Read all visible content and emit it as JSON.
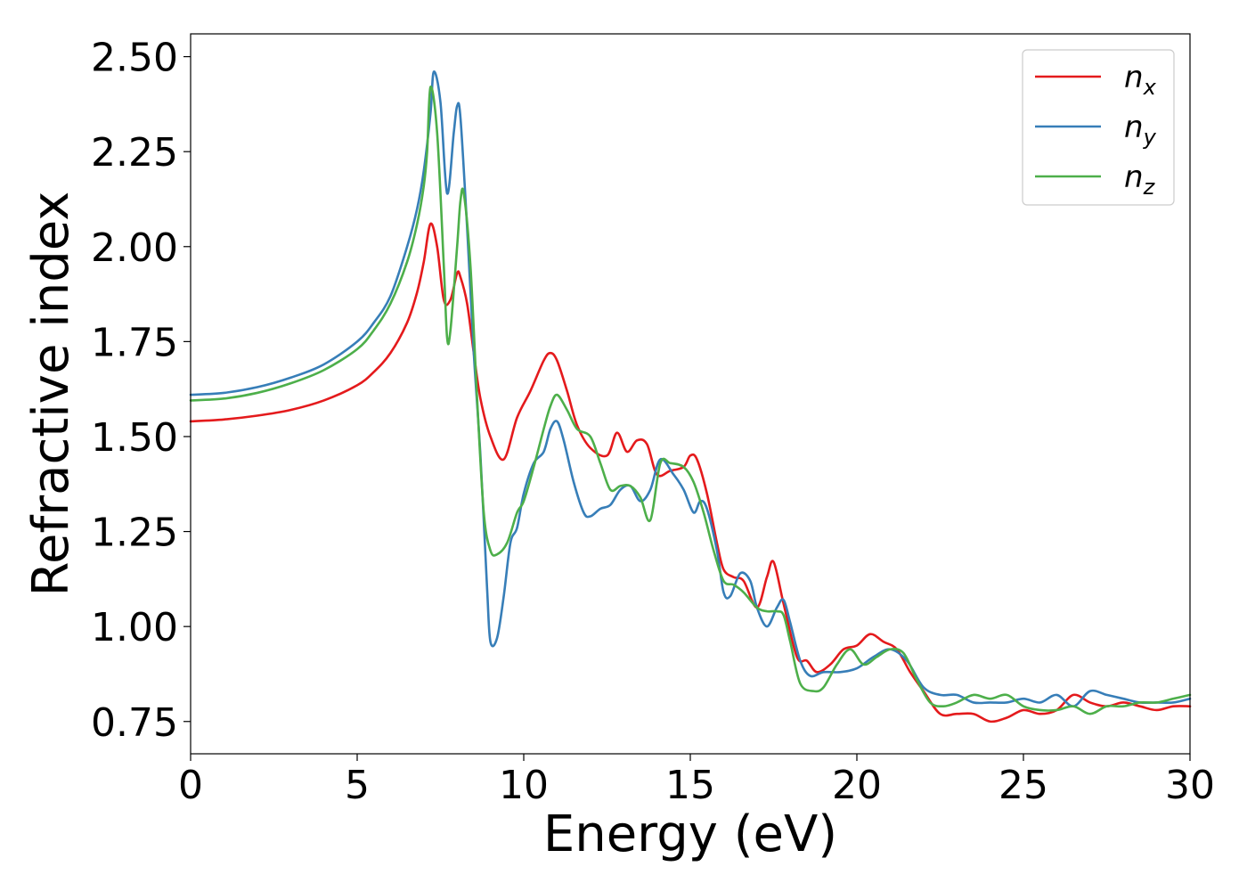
{
  "chart_data": {
    "type": "line",
    "title": "",
    "xlabel": "Energy (eV)",
    "ylabel": "Refractive index",
    "xlim": [
      0,
      30
    ],
    "ylim": [
      0.665,
      2.56
    ],
    "xticks": [
      0,
      5,
      10,
      15,
      20,
      25,
      30
    ],
    "xtick_labels": [
      "0",
      "5",
      "10",
      "15",
      "20",
      "25",
      "30"
    ],
    "yticks": [
      0.75,
      1.0,
      1.25,
      1.5,
      1.75,
      2.0,
      2.25,
      2.5
    ],
    "ytick_labels": [
      "0.75",
      "1.00",
      "1.25",
      "1.50",
      "1.75",
      "2.00",
      "2.25",
      "2.50"
    ],
    "grid": false,
    "legend_position": "top-right",
    "series": [
      {
        "name": "n_x",
        "label_base": "n",
        "label_sub": "x",
        "color": "#e41a1c",
        "x": [
          0,
          1,
          2,
          3,
          4,
          5,
          5.5,
          6,
          6.5,
          6.8,
          7.0,
          7.2,
          7.4,
          7.6,
          7.8,
          8.0,
          8.1,
          8.3,
          8.5,
          8.7,
          9.0,
          9.4,
          9.8,
          10.2,
          10.6,
          10.8,
          11.0,
          11.3,
          11.6,
          12.0,
          12.5,
          12.8,
          13.1,
          13.4,
          13.7,
          14.0,
          14.4,
          14.8,
          15.0,
          15.2,
          15.5,
          15.8,
          16.0,
          16.3,
          16.6,
          17.0,
          17.3,
          17.5,
          17.8,
          18.2,
          18.5,
          18.8,
          19.2,
          19.6,
          20.0,
          20.4,
          20.8,
          21.2,
          21.6,
          22.0,
          22.5,
          23.0,
          23.5,
          24.0,
          24.5,
          25.0,
          25.5,
          26.0,
          26.5,
          27.0,
          27.5,
          28.0,
          28.5,
          29.0,
          29.5,
          30.0
        ],
        "y": [
          1.54,
          1.545,
          1.555,
          1.57,
          1.595,
          1.635,
          1.67,
          1.72,
          1.8,
          1.88,
          1.96,
          2.06,
          2.0,
          1.86,
          1.86,
          1.93,
          1.92,
          1.85,
          1.72,
          1.6,
          1.5,
          1.44,
          1.55,
          1.62,
          1.7,
          1.72,
          1.7,
          1.62,
          1.53,
          1.47,
          1.45,
          1.51,
          1.46,
          1.49,
          1.48,
          1.4,
          1.41,
          1.42,
          1.45,
          1.44,
          1.35,
          1.22,
          1.15,
          1.13,
          1.12,
          1.05,
          1.13,
          1.17,
          1.06,
          0.92,
          0.91,
          0.88,
          0.9,
          0.94,
          0.95,
          0.98,
          0.96,
          0.94,
          0.88,
          0.83,
          0.77,
          0.77,
          0.77,
          0.75,
          0.76,
          0.78,
          0.77,
          0.78,
          0.82,
          0.8,
          0.79,
          0.8,
          0.79,
          0.78,
          0.79,
          0.79
        ]
      },
      {
        "name": "n_y",
        "label_base": "n",
        "label_sub": "y",
        "color": "#377eb8",
        "x": [
          0,
          1,
          2,
          3,
          4,
          5,
          5.5,
          6,
          6.5,
          6.8,
          7.0,
          7.2,
          7.3,
          7.5,
          7.7,
          7.9,
          8.0,
          8.1,
          8.3,
          8.5,
          8.7,
          8.9,
          9.0,
          9.2,
          9.4,
          9.6,
          9.8,
          10.0,
          10.3,
          10.6,
          10.8,
          11.0,
          11.2,
          11.5,
          11.8,
          12.0,
          12.3,
          12.6,
          12.9,
          13.2,
          13.5,
          13.8,
          14.1,
          14.5,
          14.8,
          15.1,
          15.3,
          15.5,
          15.8,
          16.0,
          16.2,
          16.5,
          16.8,
          17.0,
          17.3,
          17.6,
          17.8,
          18.0,
          18.3,
          18.6,
          19.0,
          19.5,
          20.0,
          20.5,
          21.0,
          21.5,
          22.0,
          22.5,
          23.0,
          23.5,
          24.0,
          24.5,
          25.0,
          25.5,
          26.0,
          26.5,
          27.0,
          27.5,
          28.0,
          28.5,
          29.0,
          29.5,
          30.0
        ],
        "y": [
          1.61,
          1.615,
          1.63,
          1.655,
          1.69,
          1.75,
          1.8,
          1.87,
          2.0,
          2.1,
          2.2,
          2.35,
          2.46,
          2.38,
          2.14,
          2.3,
          2.37,
          2.34,
          2.05,
          1.72,
          1.45,
          1.1,
          0.96,
          0.97,
          1.08,
          1.22,
          1.26,
          1.35,
          1.43,
          1.46,
          1.52,
          1.54,
          1.49,
          1.38,
          1.3,
          1.29,
          1.31,
          1.32,
          1.36,
          1.37,
          1.33,
          1.36,
          1.44,
          1.4,
          1.36,
          1.3,
          1.33,
          1.31,
          1.2,
          1.09,
          1.08,
          1.14,
          1.12,
          1.05,
          1.0,
          1.05,
          1.07,
          1.01,
          0.91,
          0.87,
          0.88,
          0.88,
          0.89,
          0.92,
          0.94,
          0.91,
          0.84,
          0.82,
          0.82,
          0.8,
          0.8,
          0.8,
          0.81,
          0.8,
          0.82,
          0.79,
          0.83,
          0.82,
          0.81,
          0.8,
          0.8,
          0.8,
          0.81
        ]
      },
      {
        "name": "n_z",
        "label_base": "n",
        "label_sub": "z",
        "color": "#4daf4a",
        "x": [
          0,
          1,
          2,
          3,
          4,
          5,
          5.5,
          6,
          6.5,
          6.8,
          7.0,
          7.1,
          7.2,
          7.4,
          7.6,
          7.7,
          7.8,
          8.0,
          8.1,
          8.2,
          8.4,
          8.6,
          8.8,
          9.0,
          9.2,
          9.5,
          9.8,
          10.0,
          10.3,
          10.6,
          10.8,
          11.0,
          11.3,
          11.6,
          12.0,
          12.3,
          12.6,
          12.9,
          13.2,
          13.5,
          13.8,
          14.1,
          14.4,
          14.8,
          15.1,
          15.4,
          15.7,
          16.0,
          16.3,
          16.6,
          17.0,
          17.3,
          17.6,
          17.8,
          18.0,
          18.3,
          18.7,
          19.0,
          19.4,
          19.8,
          20.2,
          20.6,
          21.0,
          21.4,
          21.8,
          22.2,
          22.6,
          23.0,
          23.5,
          24.0,
          24.5,
          25.0,
          25.5,
          26.0,
          26.5,
          27.0,
          27.5,
          28.0,
          28.5,
          29.0,
          29.5,
          30.0
        ],
        "y": [
          1.595,
          1.6,
          1.615,
          1.64,
          1.675,
          1.73,
          1.78,
          1.85,
          1.96,
          2.06,
          2.16,
          2.25,
          2.42,
          2.3,
          1.95,
          1.76,
          1.78,
          2.0,
          2.12,
          2.14,
          1.95,
          1.6,
          1.3,
          1.2,
          1.19,
          1.22,
          1.3,
          1.33,
          1.42,
          1.52,
          1.58,
          1.61,
          1.57,
          1.52,
          1.5,
          1.43,
          1.36,
          1.37,
          1.37,
          1.34,
          1.28,
          1.43,
          1.43,
          1.42,
          1.38,
          1.3,
          1.2,
          1.12,
          1.11,
          1.09,
          1.05,
          1.04,
          1.04,
          1.03,
          0.96,
          0.85,
          0.83,
          0.84,
          0.9,
          0.94,
          0.9,
          0.92,
          0.94,
          0.93,
          0.86,
          0.8,
          0.79,
          0.8,
          0.82,
          0.81,
          0.82,
          0.79,
          0.78,
          0.78,
          0.79,
          0.77,
          0.79,
          0.79,
          0.8,
          0.8,
          0.81,
          0.82
        ]
      }
    ]
  }
}
